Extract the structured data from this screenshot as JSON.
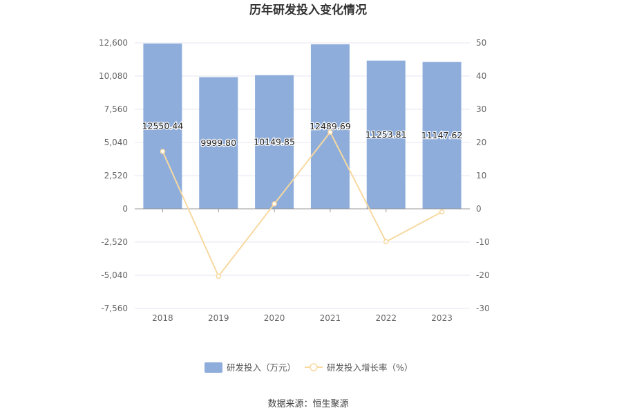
{
  "chart_data": {
    "type": "bar",
    "title": "历年研发投入变化情况",
    "categories": [
      "2018",
      "2019",
      "2020",
      "2021",
      "2022",
      "2023"
    ],
    "series": [
      {
        "name": "研发投入（万元）",
        "type": "bar",
        "axis": "left",
        "values": [
          12550.44,
          9999.8,
          10149.85,
          12489.69,
          11253.81,
          11147.62
        ],
        "labels": [
          "12550.44",
          "9999.80",
          "10149.85",
          "12489.69",
          "11253.81",
          "11147.62"
        ]
      },
      {
        "name": "研发投入增长率（%）",
        "type": "line",
        "axis": "right",
        "values": [
          17.3,
          -20.3,
          1.5,
          23.1,
          -9.9,
          -0.9
        ]
      }
    ],
    "left_axis": {
      "ylim": [
        -7560,
        12600
      ],
      "ticks": [
        12600,
        10080,
        7560,
        5040,
        2520,
        0,
        -2520,
        -5040,
        -7560
      ],
      "tick_labels": [
        "12,600",
        "10,080",
        "7,560",
        "5,040",
        "2,520",
        "0",
        "-2,520",
        "-5,040",
        "-7,560"
      ]
    },
    "right_axis": {
      "ylim": [
        -30,
        50
      ],
      "ticks": [
        50,
        40,
        30,
        20,
        10,
        0,
        -10,
        -20,
        -30
      ],
      "tick_labels": [
        "50",
        "40",
        "30",
        "20",
        "10",
        "0",
        "-10",
        "-20",
        "-30"
      ]
    },
    "legend_position": "bottom-center",
    "grid": true,
    "colors": {
      "bar": "#8eaddb",
      "line": "#f7d9a0",
      "grid": "#e4e6f2",
      "axis": "#999999"
    }
  },
  "footer": {
    "source": "数据来源：恒生聚源"
  }
}
